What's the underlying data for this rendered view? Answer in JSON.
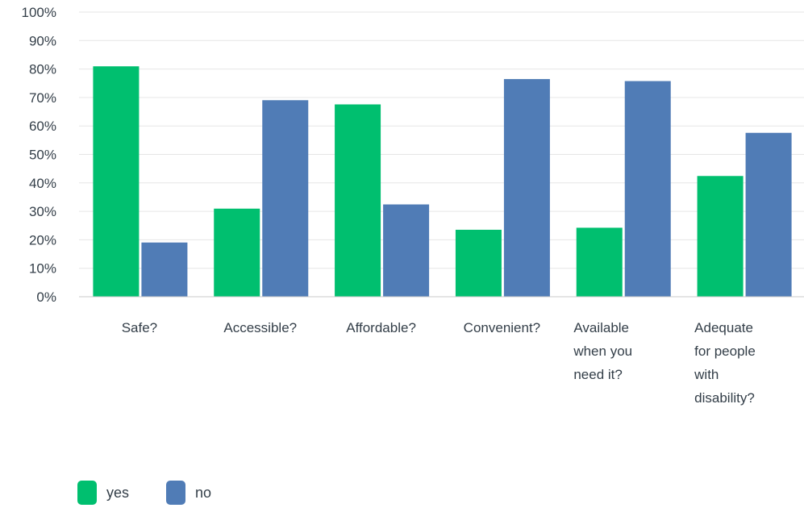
{
  "chart_data": {
    "type": "bar",
    "categories": [
      [
        "Safe?"
      ],
      [
        "Accessible?"
      ],
      [
        "Affordable?"
      ],
      [
        "Convenient?"
      ],
      [
        "Available",
        "when you",
        "need it?"
      ],
      [
        "Adequate",
        "for people",
        "with",
        "disability?"
      ]
    ],
    "series": [
      {
        "name": "yes",
        "color": "#00bf6f",
        "values": [
          80.95,
          30.95,
          67.57,
          23.53,
          24.24,
          42.42
        ]
      },
      {
        "name": "no",
        "color": "#507cb6",
        "values": [
          19.05,
          69.05,
          32.43,
          76.47,
          75.76,
          57.58
        ]
      }
    ],
    "yticks": [
      "0%",
      "10%",
      "20%",
      "30%",
      "40%",
      "50%",
      "60%",
      "70%",
      "80%",
      "90%",
      "100%"
    ],
    "ylim": [
      0,
      100
    ],
    "grid": true,
    "legend": "bottom-left"
  }
}
